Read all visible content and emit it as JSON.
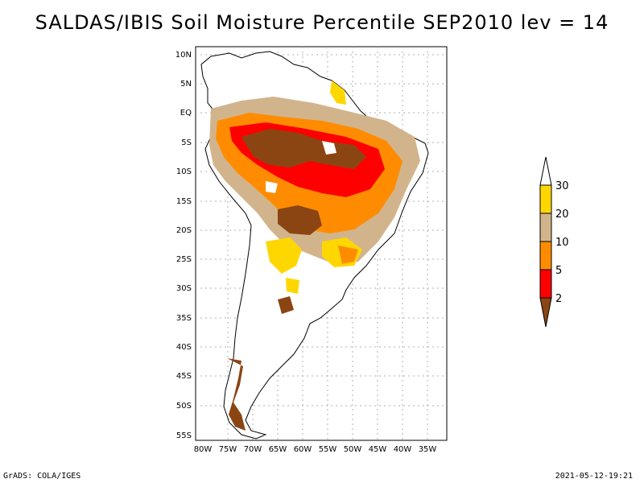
{
  "title": "SALDAS/IBIS Soil Moisture Percentile SEP2010 lev = 14",
  "footer": {
    "left": "GrADS: COLA/IGES",
    "right": "2021-05-12-19:21"
  },
  "map": {
    "lat_ticks": [
      "10N",
      "5N",
      "EQ",
      "5S",
      "10S",
      "15S",
      "20S",
      "25S",
      "30S",
      "35S",
      "40S",
      "45S",
      "50S",
      "55S"
    ],
    "lon_ticks": [
      "80W",
      "75W",
      "70W",
      "65W",
      "60W",
      "55W",
      "50W",
      "45W",
      "40W",
      "35W"
    ],
    "grid": true
  },
  "legend": {
    "levels": [
      "2",
      "5",
      "10",
      "20",
      "30"
    ],
    "colors": {
      "below_2": "#8b4513",
      "2_5": "#ff0000",
      "5_10": "#ff8c00",
      "10_20": "#d2b48c",
      "20_30": "#ffd700",
      "above_30": "#ffffff"
    }
  }
}
